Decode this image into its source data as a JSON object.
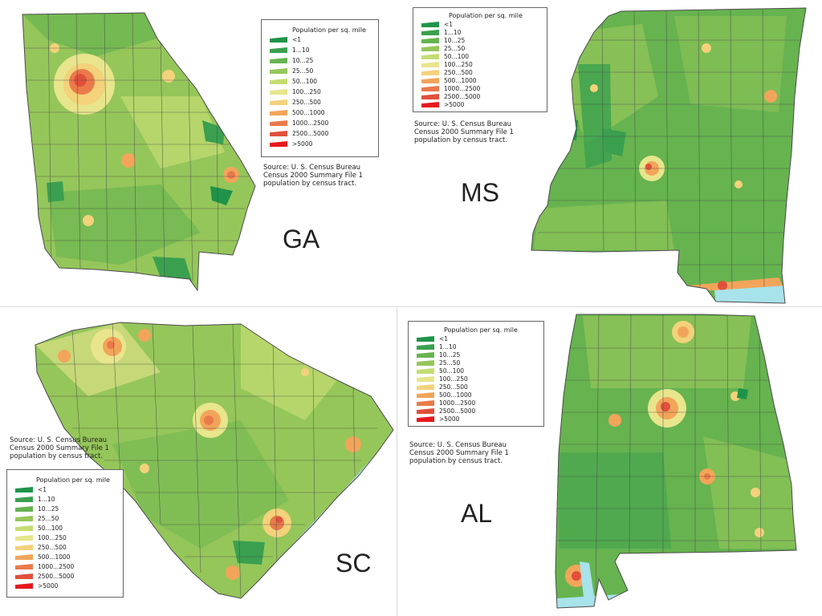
{
  "legend": {
    "title": "Population per sq. mile",
    "items": [
      {
        "label": "<1",
        "color": "#1f9449"
      },
      {
        "label": "1...10",
        "color": "#3aa04f"
      },
      {
        "label": "10...25",
        "color": "#66b34f"
      },
      {
        "label": "25...50",
        "color": "#95c65a"
      },
      {
        "label": "50...100",
        "color": "#c4dd72"
      },
      {
        "label": "100...250",
        "color": "#e8e58c"
      },
      {
        "label": "250...500",
        "color": "#f3d27b"
      },
      {
        "label": "500...1000",
        "color": "#f2a55a"
      },
      {
        "label": "1000...2500",
        "color": "#ea7a4a"
      },
      {
        "label": "2500...5000",
        "color": "#e0503b"
      },
      {
        "label": ">5000",
        "color": "#e6191f"
      }
    ]
  },
  "source": {
    "line1": "Source: U. S. Census Bureau",
    "line2": "Census 2000 Summary File 1",
    "line3": "population by census tract."
  },
  "states": {
    "ga": {
      "label": "GA"
    },
    "ms": {
      "label": "MS"
    },
    "sc": {
      "label": "SC"
    },
    "al": {
      "label": "AL"
    }
  },
  "colors": {
    "water": "#a8e2ea",
    "border": "#4a4a4a"
  }
}
